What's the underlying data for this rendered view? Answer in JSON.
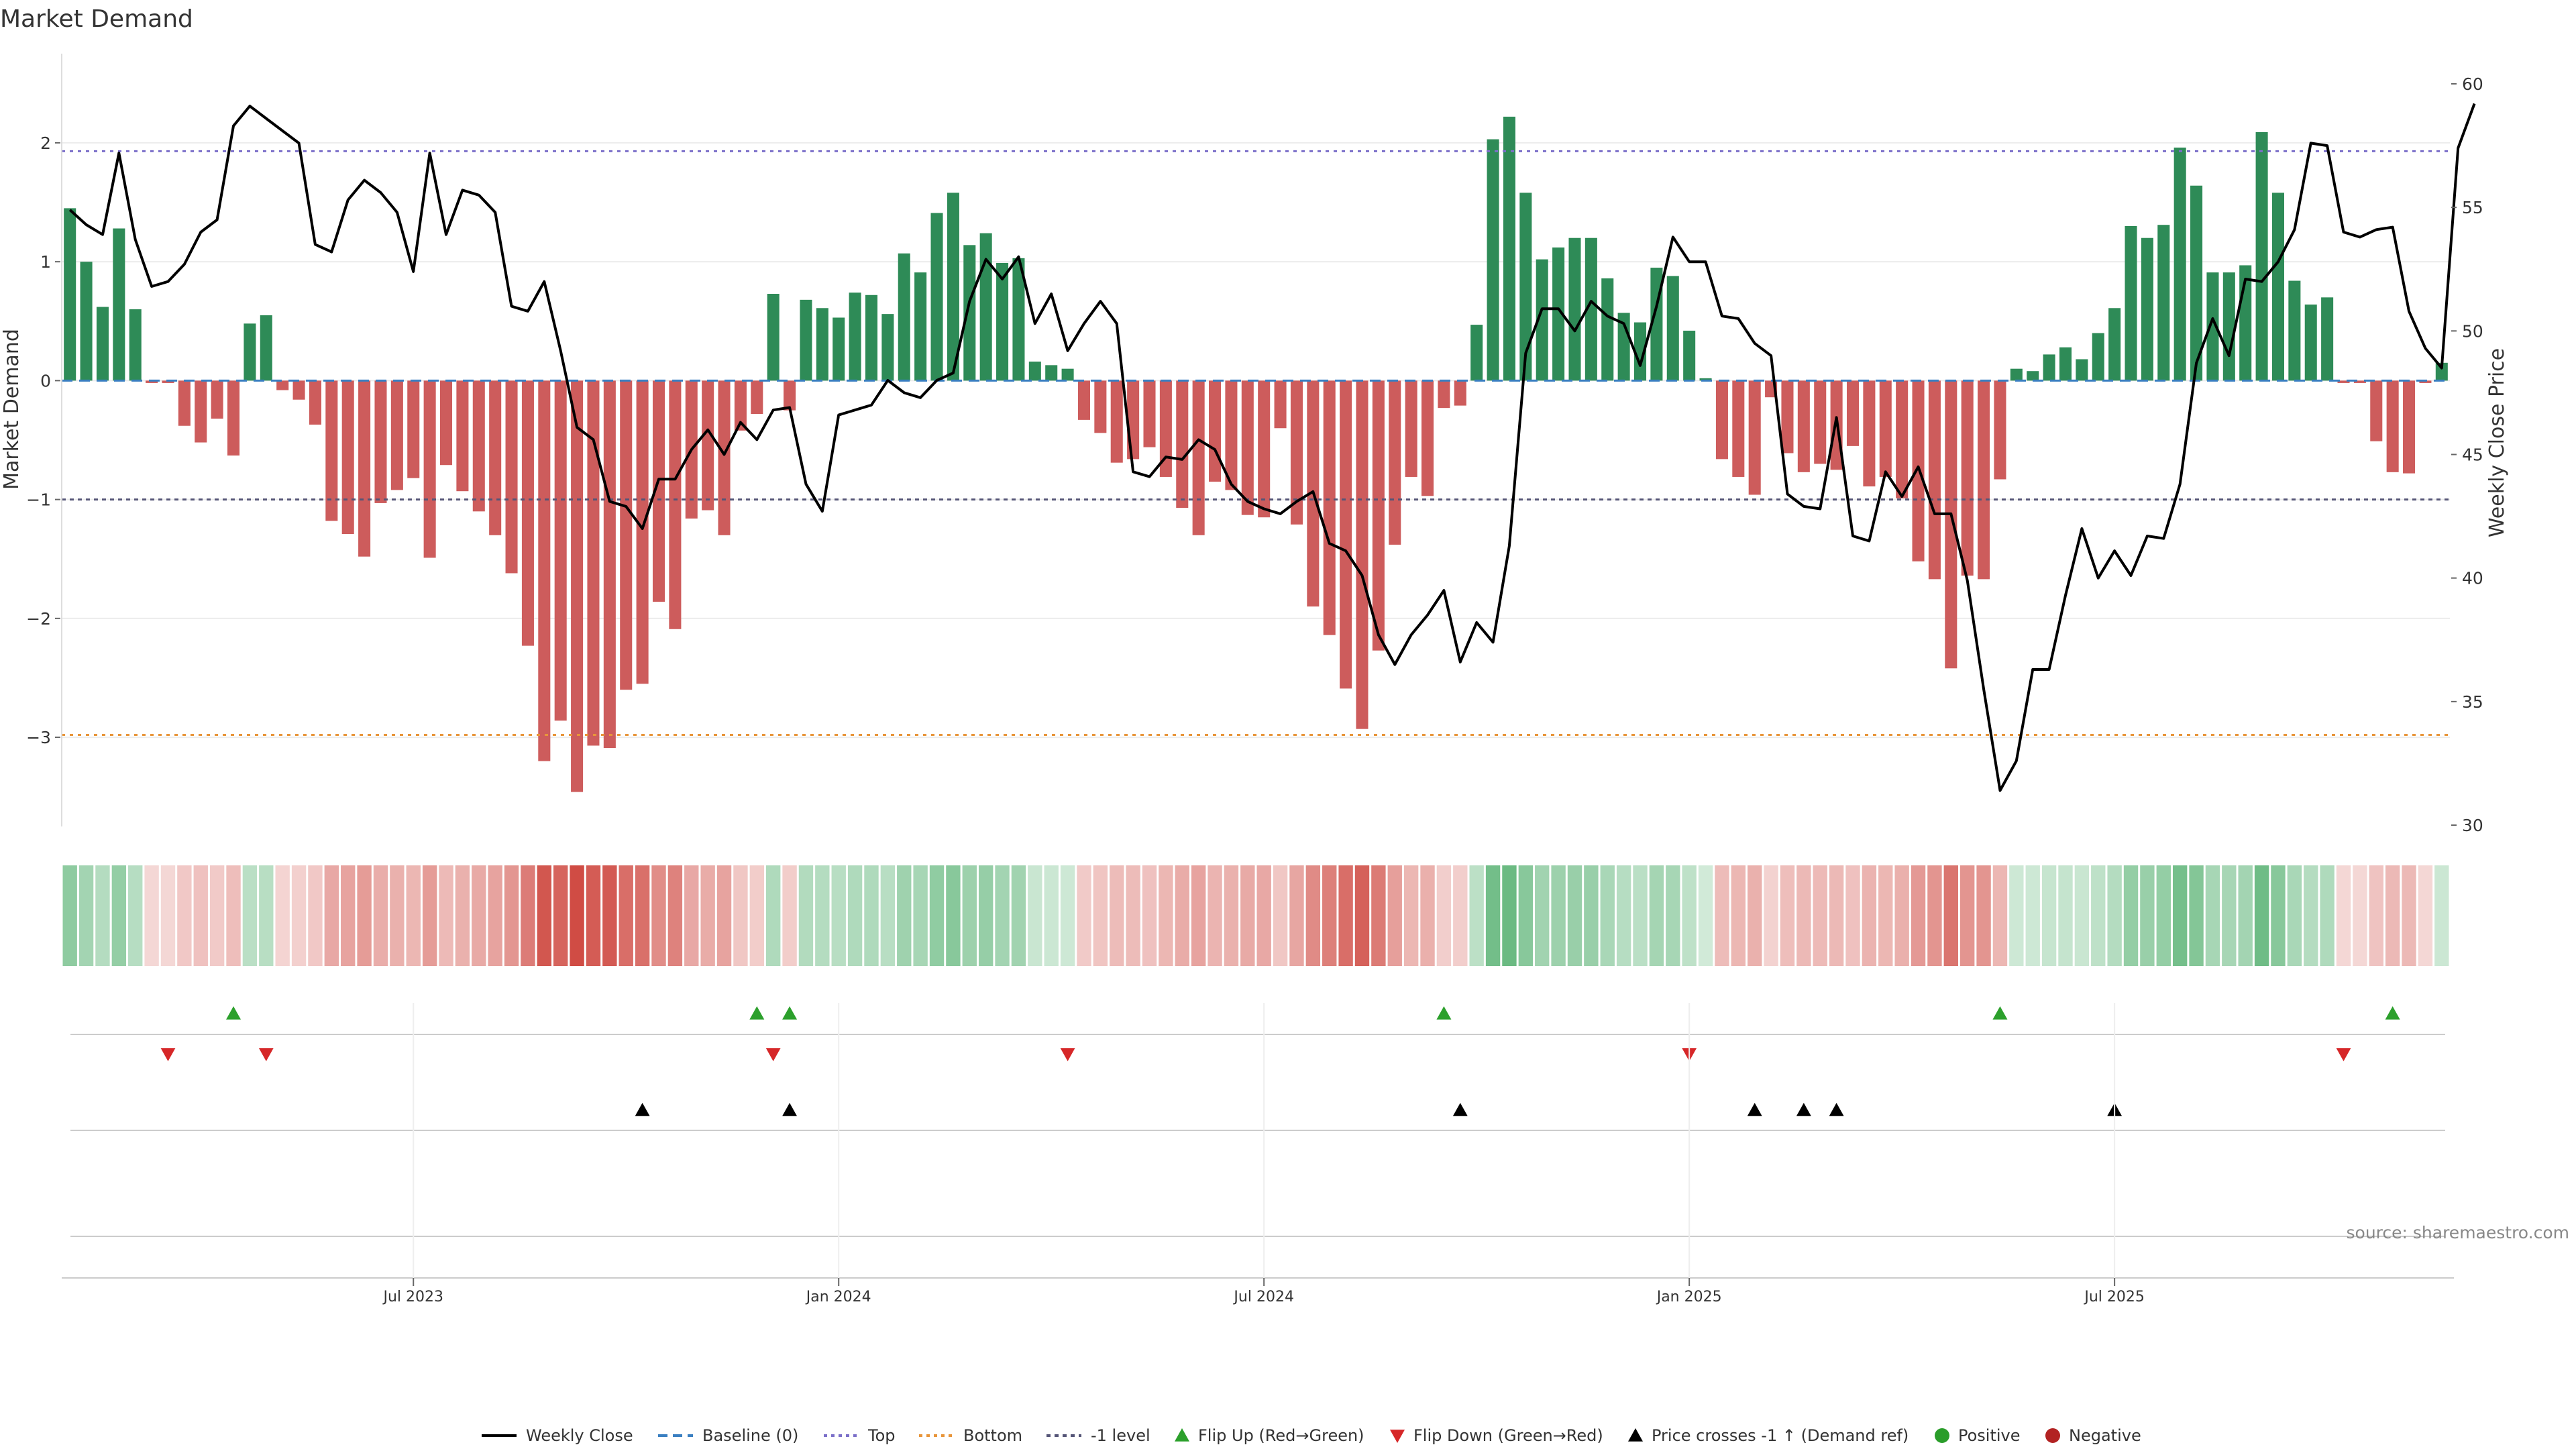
{
  "chart_data": {
    "type": "bar",
    "title": "Market Demand",
    "ylabel": "Market Demand",
    "y2label": "Weekly Close Price",
    "ylim": [
      -3.75,
      2.75
    ],
    "y2lim": [
      30,
      60
    ],
    "yticks": [
      2,
      1,
      0,
      -1,
      -2,
      -3
    ],
    "yticklabels": [
      "2",
      "1",
      "0",
      "−1",
      "−2",
      "−3"
    ],
    "y2ticks": [
      60,
      55,
      50,
      45,
      40,
      35,
      30
    ],
    "y2ticklabels": [
      "60",
      "55",
      "50",
      "45",
      "40",
      "35",
      "30"
    ],
    "reference_lines": {
      "top": 1.93,
      "bottom": -2.98,
      "minus_one": -1,
      "baseline": 0
    },
    "x_date_ticks": [
      {
        "label": "Jul 2023",
        "week": 21.5
      },
      {
        "label": "Jan 2024",
        "week": 47.5
      },
      {
        "label": "Jul 2024",
        "week": 73.5
      },
      {
        "label": "Jan 2025",
        "week": 99.5
      },
      {
        "label": "Jul 2025",
        "week": 125.5
      }
    ],
    "series": [
      {
        "name": "Market Demand",
        "values": [
          1.45,
          1.0,
          0.62,
          1.28,
          0.6,
          -0.02,
          -0.02,
          -0.38,
          -0.52,
          -0.32,
          -0.63,
          0.48,
          0.55,
          -0.08,
          -0.16,
          -0.37,
          -1.18,
          -1.29,
          -1.48,
          -1.03,
          -0.92,
          -0.82,
          -1.49,
          -0.71,
          -0.93,
          -1.1,
          -1.3,
          -1.62,
          -2.23,
          -3.2,
          -2.86,
          -3.46,
          -3.07,
          -3.09,
          -2.6,
          -2.55,
          -1.86,
          -2.09,
          -1.16,
          -1.09,
          -1.3,
          -0.42,
          -0.28,
          0.73,
          -0.25,
          0.68,
          0.61,
          0.53,
          0.74,
          0.72,
          0.56,
          1.07,
          0.91,
          1.41,
          1.58,
          1.14,
          1.24,
          0.99,
          1.03,
          0.16,
          0.13,
          0.1,
          -0.33,
          -0.44,
          -0.69,
          -0.66,
          -0.56,
          -0.81,
          -1.07,
          -1.3,
          -0.85,
          -0.92,
          -1.13,
          -1.15,
          -0.4,
          -1.21,
          -1.9,
          -2.14,
          -2.59,
          -2.93,
          -2.27,
          -1.38,
          -0.81,
          -0.97,
          -0.23,
          -0.21,
          0.47,
          2.03,
          2.22,
          1.58,
          1.02,
          1.12,
          1.2,
          1.2,
          0.86,
          0.57,
          0.49,
          0.95,
          0.88,
          0.42,
          0.02,
          -0.66,
          -0.81,
          -0.96,
          -0.14,
          -0.61,
          -0.77,
          -0.7,
          -0.75,
          -0.55,
          -0.89,
          -0.81,
          -0.99,
          -1.52,
          -1.67,
          -2.42,
          -1.64,
          -1.67,
          -0.83,
          0.1,
          0.08,
          0.22,
          0.28,
          0.18,
          0.4,
          0.61,
          1.3,
          1.2,
          1.31,
          1.96,
          1.64,
          0.91,
          0.91,
          0.97,
          2.09,
          1.58,
          0.84,
          0.64,
          0.7,
          -0.02,
          -0.02,
          -0.51,
          -0.77,
          -0.78,
          -0.02,
          0.15
        ]
      },
      {
        "name": "Weekly Close",
        "values": [
          54.9,
          54.3,
          53.9,
          57.2,
          53.7,
          51.8,
          52.0,
          52.7,
          54.0,
          54.5,
          58.3,
          59.1,
          58.6,
          58.1,
          57.6,
          53.5,
          53.2,
          55.3,
          56.1,
          55.6,
          54.8,
          52.4,
          57.2,
          53.9,
          55.7,
          55.5,
          54.8,
          51.0,
          50.8,
          52.0,
          49.2,
          46.1,
          45.6,
          43.1,
          42.9,
          42.0,
          44.0,
          44.0,
          45.2,
          46.0,
          45.0,
          46.3,
          45.6,
          46.8,
          46.9,
          43.8,
          42.7,
          46.6,
          46.8,
          47.0,
          48.0,
          47.5,
          47.3,
          48.0,
          48.3,
          51.2,
          52.9,
          52.1,
          53.0,
          50.3,
          51.5,
          49.2,
          50.3,
          51.2,
          50.3,
          44.3,
          44.1,
          44.9,
          44.8,
          45.6,
          45.2,
          43.8,
          43.1,
          42.8,
          42.6,
          43.1,
          43.5,
          41.4,
          41.1,
          40.1,
          37.7,
          36.5,
          37.7,
          38.5,
          39.5,
          36.6,
          38.2,
          37.4,
          41.3,
          49.1,
          50.9,
          50.9,
          50.0,
          51.2,
          50.6,
          50.3,
          48.6,
          51.0,
          53.8,
          52.8,
          52.8,
          50.6,
          50.5,
          49.5,
          49.0,
          43.4,
          42.9,
          42.8,
          46.5,
          41.7,
          41.5,
          44.3,
          43.3,
          44.5,
          42.6,
          42.6,
          39.9,
          35.5,
          31.4,
          32.6,
          36.3,
          36.3,
          39.3,
          42.0,
          40.0,
          41.1,
          40.1,
          41.7,
          41.6,
          43.8,
          48.7,
          50.5,
          49.0,
          52.1,
          52.0,
          52.8,
          54.1,
          57.6,
          57.5,
          54.0,
          53.8,
          54.1,
          54.2,
          50.8,
          49.3,
          48.5,
          57.4,
          59.2
        ]
      }
    ],
    "flip_up_weeks": [
      10,
      42,
      44,
      84,
      118,
      142
    ],
    "flip_down_weeks": [
      6,
      12,
      43,
      61,
      99,
      139
    ],
    "price_cross_weeks": [
      35,
      44,
      85,
      103,
      106,
      108,
      125
    ],
    "legend": [
      "Weekly Close",
      "Baseline (0)",
      "Top",
      "Bottom",
      "-1 level",
      "Flip Up (Red→Green)",
      "Flip Down (Green→Red)",
      "Price crosses -1 ↑ (Demand ref)",
      "Positive",
      "Negative"
    ],
    "legend_placement": "bottom-center",
    "source": "source: sharemaestro.com"
  },
  "colors": {
    "positive_bar": "#2e8b57",
    "negative_bar": "#cd5c5c",
    "price_line": "#000000",
    "top_line": "#7b6fc9",
    "bottom_line": "#e8953a",
    "minus_one_line": "#555577",
    "baseline": "#3a7fc1",
    "flip_up": "#2ca02c",
    "flip_down": "#d62728",
    "cross_marker": "#000000",
    "positive_dot": "#2a9d2a",
    "negative_dot": "#b22222",
    "heat_positive": "#2e9e4f",
    "heat_negative": "#cf4a42"
  }
}
